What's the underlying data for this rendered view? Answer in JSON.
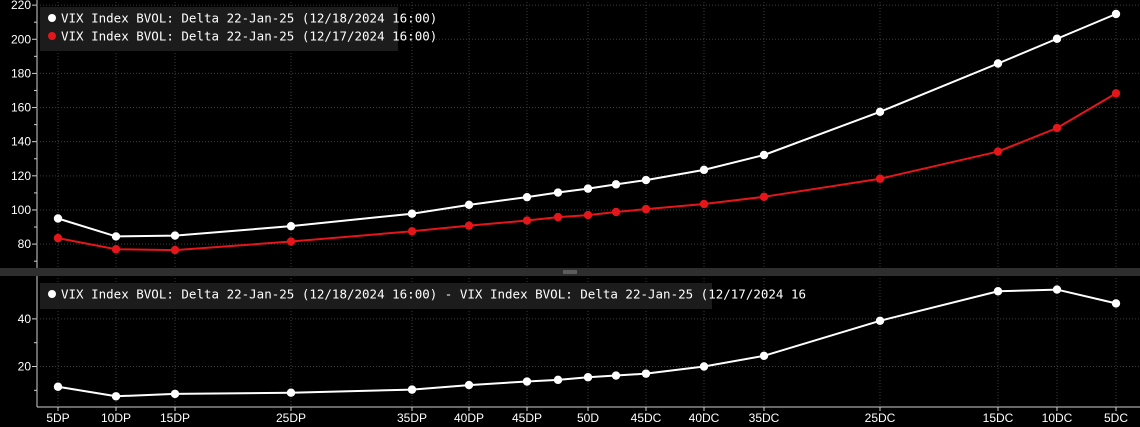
{
  "chart_data": [
    {
      "type": "line",
      "categories": [
        "5DP",
        "10DP",
        "15DP",
        "25DP",
        "35DP",
        "40DP",
        "45DP",
        "50D",
        "45DC",
        "40DC",
        "35DC",
        "25DC",
        "15DC",
        "10DC",
        "5DC"
      ],
      "ylim": [
        66,
        223
      ],
      "yticks": [
        80,
        100,
        120,
        140,
        160,
        180,
        200,
        220
      ],
      "grid": true,
      "legend_position": "top-left",
      "series": [
        {
          "name": "VIX Index BVOL: Delta 22-Jan-25 (12/18/2024 16:00)",
          "color": "#ffffff",
          "points": [
            {
              "x": "5DP",
              "y": 95.0
            },
            {
              "x": "10DP",
              "y": 84.5
            },
            {
              "x": "15DP",
              "y": 85.0
            },
            {
              "x": "25DP",
              "y": 90.5
            },
            {
              "x": "35DP",
              "y": 97.8
            },
            {
              "x": "40DP",
              "y": 103.0
            },
            {
              "x": "45DP",
              "y": 107.5
            },
            {
              "x": "",
              "y": 110.2
            },
            {
              "x": "50D",
              "y": 112.5
            },
            {
              "x": "",
              "y": 115.0
            },
            {
              "x": "45DC",
              "y": 117.5
            },
            {
              "x": "40DC",
              "y": 123.5
            },
            {
              "x": "35DC",
              "y": 132.2
            },
            {
              "x": "25DC",
              "y": 157.5
            },
            {
              "x": "15DC",
              "y": 185.8
            },
            {
              "x": "10DC",
              "y": 200.3
            },
            {
              "x": "5DC",
              "y": 214.8
            }
          ]
        },
        {
          "name": "VIX Index BVOL: Delta 22-Jan-25 (12/17/2024 16:00)",
          "color": "#e4161a",
          "points": [
            {
              "x": "5DP",
              "y": 83.5
            },
            {
              "x": "10DP",
              "y": 77.0
            },
            {
              "x": "15DP",
              "y": 76.5
            },
            {
              "x": "25DP",
              "y": 81.5
            },
            {
              "x": "35DP",
              "y": 87.5
            },
            {
              "x": "40DP",
              "y": 90.8
            },
            {
              "x": "45DP",
              "y": 93.8
            },
            {
              "x": "",
              "y": 95.8
            },
            {
              "x": "50D",
              "y": 97.0
            },
            {
              "x": "",
              "y": 98.8
            },
            {
              "x": "45DC",
              "y": 100.5
            },
            {
              "x": "40DC",
              "y": 103.5
            },
            {
              "x": "35DC",
              "y": 107.7
            },
            {
              "x": "25DC",
              "y": 118.3
            },
            {
              "x": "15DC",
              "y": 134.2
            },
            {
              "x": "10DC",
              "y": 148.0
            },
            {
              "x": "5DC",
              "y": 168.3
            }
          ]
        }
      ]
    },
    {
      "type": "line",
      "categories": [
        "5DP",
        "10DP",
        "15DP",
        "25DP",
        "35DP",
        "40DP",
        "45DP",
        "50D",
        "45DC",
        "40DC",
        "35DC",
        "25DC",
        "15DC",
        "10DC",
        "5DC"
      ],
      "ylim": [
        3,
        58
      ],
      "yticks": [
        20,
        40
      ],
      "grid": true,
      "legend_position": "top-left",
      "series": [
        {
          "name": "VIX Index BVOL: Delta 22-Jan-25 (12/18/2024 16:00) - VIX Index BVOL: Delta 22-Jan-25 (12/17/2024 16",
          "color": "#ffffff",
          "points": [
            {
              "x": "5DP",
              "y": 11.5
            },
            {
              "x": "10DP",
              "y": 7.5
            },
            {
              "x": "15DP",
              "y": 8.5
            },
            {
              "x": "25DP",
              "y": 9.0
            },
            {
              "x": "35DP",
              "y": 10.3
            },
            {
              "x": "40DP",
              "y": 12.2
            },
            {
              "x": "45DP",
              "y": 13.7
            },
            {
              "x": "",
              "y": 14.4
            },
            {
              "x": "50D",
              "y": 15.5
            },
            {
              "x": "",
              "y": 16.2
            },
            {
              "x": "45DC",
              "y": 17.0
            },
            {
              "x": "40DC",
              "y": 20.0
            },
            {
              "x": "35DC",
              "y": 24.5
            },
            {
              "x": "25DC",
              "y": 39.2
            },
            {
              "x": "15DC",
              "y": 51.6
            },
            {
              "x": "10DC",
              "y": 52.3
            },
            {
              "x": "5DC",
              "y": 46.5
            }
          ]
        }
      ]
    }
  ]
}
